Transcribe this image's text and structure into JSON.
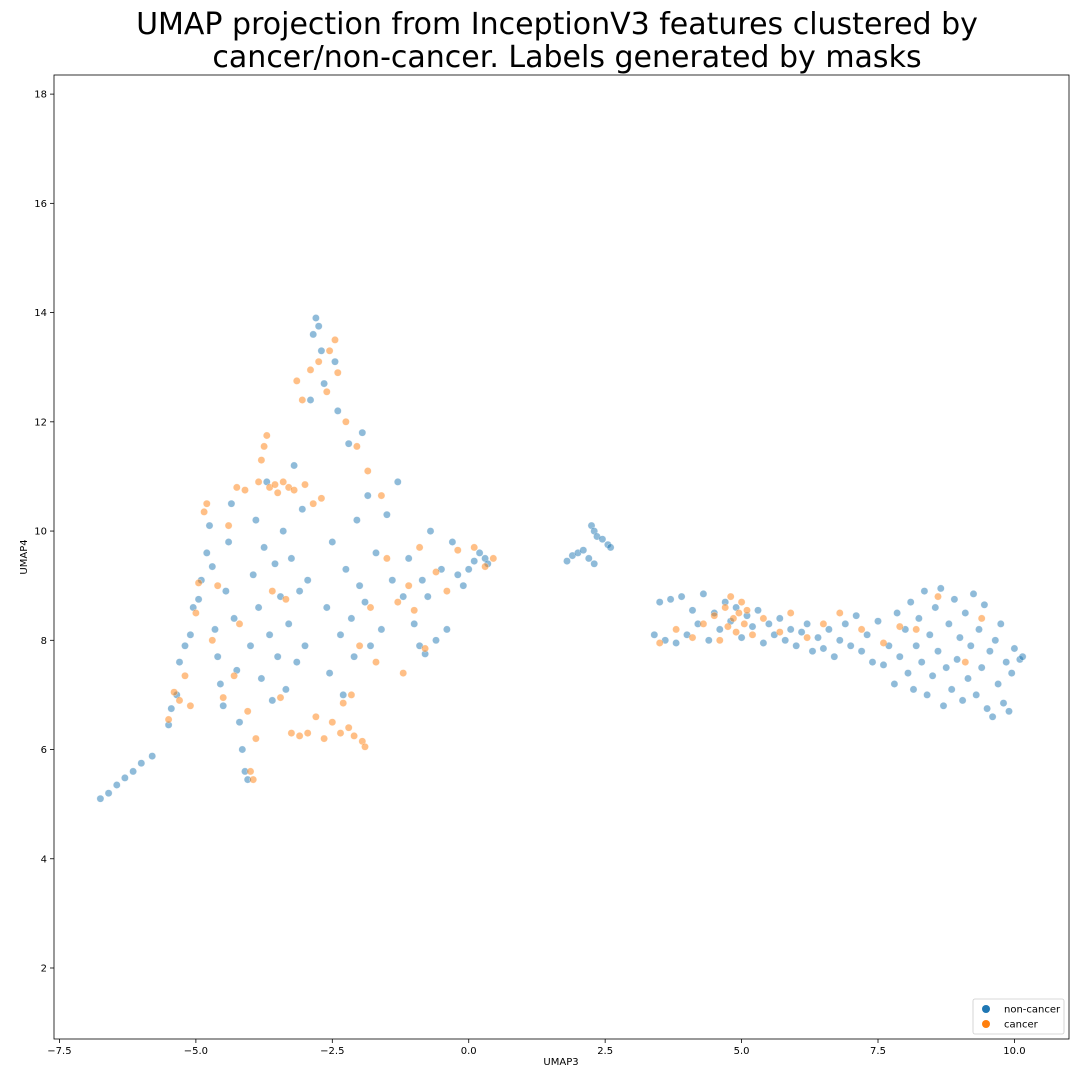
{
  "chart_data": {
    "type": "scatter",
    "title_lines": [
      "UMAP projection from InceptionV3 features clustered by",
      "cancer/non-cancer. Labels generated by masks"
    ],
    "xlabel": "UMAP3",
    "ylabel": "UMAP4",
    "xlim": [
      -7.6,
      11.0
    ],
    "ylim": [
      0.7,
      18.35
    ],
    "xticks": [
      -7.5,
      -5.0,
      -2.5,
      0.0,
      2.5,
      5.0,
      7.5,
      10.0
    ],
    "xtick_labels": [
      "−7.5",
      "−5.0",
      "−2.5",
      "0.0",
      "2.5",
      "5.0",
      "7.5",
      "10.0"
    ],
    "yticks": [
      2,
      4,
      6,
      8,
      10,
      12,
      14,
      16,
      18
    ],
    "ytick_labels": [
      "2",
      "4",
      "6",
      "8",
      "10",
      "12",
      "14",
      "16",
      "18"
    ],
    "grid": false,
    "legend": {
      "placement": "lower-right",
      "entries": [
        {
          "label": "non-cancer",
          "color": "#1f77b4"
        },
        {
          "label": "cancer",
          "color": "#ff7f0e"
        }
      ]
    },
    "point_alpha": 0.5,
    "series": [
      {
        "name": "non-cancer",
        "color": "#1f77b4",
        "points": [
          [
            -6.75,
            5.1
          ],
          [
            -6.6,
            5.2
          ],
          [
            -6.45,
            5.35
          ],
          [
            -6.3,
            5.48
          ],
          [
            -6.15,
            5.6
          ],
          [
            -6.0,
            5.75
          ],
          [
            -5.8,
            5.88
          ],
          [
            -5.5,
            6.45
          ],
          [
            -5.45,
            6.75
          ],
          [
            -5.35,
            7.0
          ],
          [
            -5.3,
            7.6
          ],
          [
            -5.2,
            7.9
          ],
          [
            -5.1,
            8.1
          ],
          [
            -5.05,
            8.6
          ],
          [
            -4.95,
            8.75
          ],
          [
            -4.9,
            9.1
          ],
          [
            -4.8,
            9.6
          ],
          [
            -4.75,
            10.1
          ],
          [
            -4.7,
            9.35
          ],
          [
            -4.65,
            8.2
          ],
          [
            -4.6,
            7.7
          ],
          [
            -4.55,
            7.2
          ],
          [
            -4.5,
            6.8
          ],
          [
            -4.45,
            8.9
          ],
          [
            -4.4,
            9.8
          ],
          [
            -4.35,
            10.5
          ],
          [
            -4.3,
            8.4
          ],
          [
            -4.25,
            7.45
          ],
          [
            -4.2,
            6.5
          ],
          [
            -4.15,
            6.0
          ],
          [
            -4.1,
            5.6
          ],
          [
            -4.05,
            5.45
          ],
          [
            -4.0,
            7.9
          ],
          [
            -3.95,
            9.2
          ],
          [
            -3.9,
            10.2
          ],
          [
            -3.85,
            8.6
          ],
          [
            -3.8,
            7.3
          ],
          [
            -3.75,
            9.7
          ],
          [
            -3.7,
            10.9
          ],
          [
            -3.65,
            8.1
          ],
          [
            -3.6,
            6.9
          ],
          [
            -3.55,
            9.4
          ],
          [
            -3.5,
            7.7
          ],
          [
            -3.45,
            8.8
          ],
          [
            -3.4,
            10.0
          ],
          [
            -3.35,
            7.1
          ],
          [
            -3.3,
            8.3
          ],
          [
            -3.25,
            9.5
          ],
          [
            -3.2,
            11.2
          ],
          [
            -3.15,
            7.6
          ],
          [
            -3.1,
            8.9
          ],
          [
            -3.05,
            10.4
          ],
          [
            -3.0,
            7.9
          ],
          [
            -2.95,
            9.1
          ],
          [
            -2.9,
            12.4
          ],
          [
            -2.85,
            13.6
          ],
          [
            -2.8,
            13.9
          ],
          [
            -2.75,
            13.75
          ],
          [
            -2.7,
            13.3
          ],
          [
            -2.65,
            12.7
          ],
          [
            -2.6,
            8.6
          ],
          [
            -2.55,
            7.4
          ],
          [
            -2.5,
            9.8
          ],
          [
            -2.45,
            13.1
          ],
          [
            -2.4,
            12.2
          ],
          [
            -2.35,
            8.1
          ],
          [
            -2.3,
            7.0
          ],
          [
            -2.25,
            9.3
          ],
          [
            -2.2,
            11.6
          ],
          [
            -2.15,
            8.4
          ],
          [
            -2.1,
            7.7
          ],
          [
            -2.05,
            10.2
          ],
          [
            -2.0,
            9.0
          ],
          [
            -1.95,
            11.8
          ],
          [
            -1.9,
            8.7
          ],
          [
            -1.85,
            10.65
          ],
          [
            -1.8,
            7.9
          ],
          [
            -1.7,
            9.6
          ],
          [
            -1.6,
            8.2
          ],
          [
            -1.5,
            10.3
          ],
          [
            -1.4,
            9.1
          ],
          [
            -1.3,
            10.9
          ],
          [
            -1.2,
            8.8
          ],
          [
            -1.1,
            9.5
          ],
          [
            -1.0,
            8.3
          ],
          [
            -0.9,
            7.9
          ],
          [
            -0.85,
            9.1
          ],
          [
            -0.8,
            7.75
          ],
          [
            -0.75,
            8.8
          ],
          [
            -0.7,
            10.0
          ],
          [
            -0.6,
            8.0
          ],
          [
            -0.5,
            9.3
          ],
          [
            -0.4,
            8.2
          ],
          [
            -0.3,
            9.8
          ],
          [
            -0.2,
            9.2
          ],
          [
            -0.1,
            9.0
          ],
          [
            0.0,
            9.3
          ],
          [
            0.1,
            9.45
          ],
          [
            0.2,
            9.6
          ],
          [
            0.3,
            9.5
          ],
          [
            0.35,
            9.4
          ],
          [
            1.8,
            9.45
          ],
          [
            1.9,
            9.55
          ],
          [
            2.0,
            9.6
          ],
          [
            2.1,
            9.65
          ],
          [
            2.2,
            9.5
          ],
          [
            2.25,
            10.1
          ],
          [
            2.3,
            10.0
          ],
          [
            2.35,
            9.9
          ],
          [
            2.45,
            9.85
          ],
          [
            2.55,
            9.75
          ],
          [
            2.6,
            9.7
          ],
          [
            2.3,
            9.4
          ],
          [
            3.4,
            8.1
          ],
          [
            3.5,
            8.7
          ],
          [
            3.6,
            8.0
          ],
          [
            3.7,
            8.75
          ],
          [
            3.8,
            7.95
          ],
          [
            3.9,
            8.8
          ],
          [
            4.0,
            8.1
          ],
          [
            4.1,
            8.55
          ],
          [
            4.2,
            8.3
          ],
          [
            4.3,
            8.85
          ],
          [
            4.4,
            8.0
          ],
          [
            4.5,
            8.5
          ],
          [
            4.6,
            8.2
          ],
          [
            4.7,
            8.7
          ],
          [
            4.8,
            8.35
          ],
          [
            4.9,
            8.6
          ],
          [
            5.0,
            8.05
          ],
          [
            5.1,
            8.45
          ],
          [
            5.2,
            8.25
          ],
          [
            5.3,
            8.55
          ],
          [
            5.4,
            7.95
          ],
          [
            5.5,
            8.3
          ],
          [
            5.6,
            8.1
          ],
          [
            5.7,
            8.4
          ],
          [
            5.8,
            8.0
          ],
          [
            5.9,
            8.2
          ],
          [
            6.0,
            7.9
          ],
          [
            6.1,
            8.15
          ],
          [
            6.2,
            8.3
          ],
          [
            6.3,
            7.8
          ],
          [
            6.4,
            8.05
          ],
          [
            6.5,
            7.85
          ],
          [
            6.6,
            8.2
          ],
          [
            6.7,
            7.7
          ],
          [
            6.8,
            8.0
          ],
          [
            6.9,
            8.3
          ],
          [
            7.0,
            7.9
          ],
          [
            7.1,
            8.45
          ],
          [
            7.2,
            7.8
          ],
          [
            7.3,
            8.1
          ],
          [
            7.4,
            7.6
          ],
          [
            7.5,
            8.35
          ],
          [
            7.6,
            7.55
          ],
          [
            7.7,
            7.9
          ],
          [
            7.8,
            7.2
          ],
          [
            7.85,
            8.5
          ],
          [
            7.9,
            7.7
          ],
          [
            8.0,
            8.2
          ],
          [
            8.05,
            7.4
          ],
          [
            8.1,
            8.7
          ],
          [
            8.15,
            7.1
          ],
          [
            8.2,
            7.9
          ],
          [
            8.25,
            8.4
          ],
          [
            8.3,
            7.6
          ],
          [
            8.35,
            8.9
          ],
          [
            8.4,
            7.0
          ],
          [
            8.45,
            8.1
          ],
          [
            8.5,
            7.35
          ],
          [
            8.55,
            8.6
          ],
          [
            8.6,
            7.8
          ],
          [
            8.65,
            8.95
          ],
          [
            8.7,
            6.8
          ],
          [
            8.75,
            7.5
          ],
          [
            8.8,
            8.3
          ],
          [
            8.85,
            7.1
          ],
          [
            8.9,
            8.75
          ],
          [
            8.95,
            7.65
          ],
          [
            9.0,
            8.05
          ],
          [
            9.05,
            6.9
          ],
          [
            9.1,
            8.5
          ],
          [
            9.15,
            7.3
          ],
          [
            9.2,
            7.9
          ],
          [
            9.25,
            8.85
          ],
          [
            9.3,
            7.0
          ],
          [
            9.35,
            8.2
          ],
          [
            9.4,
            7.5
          ],
          [
            9.45,
            8.65
          ],
          [
            9.5,
            6.75
          ],
          [
            9.55,
            7.8
          ],
          [
            9.6,
            6.6
          ],
          [
            9.65,
            8.0
          ],
          [
            9.7,
            7.2
          ],
          [
            9.75,
            8.3
          ],
          [
            9.8,
            6.85
          ],
          [
            9.85,
            7.6
          ],
          [
            9.9,
            6.7
          ],
          [
            9.95,
            7.4
          ],
          [
            10.0,
            7.85
          ],
          [
            10.1,
            7.65
          ],
          [
            10.15,
            7.7
          ]
        ]
      },
      {
        "name": "cancer",
        "color": "#ff7f0e",
        "points": [
          [
            -5.5,
            6.55
          ],
          [
            -5.4,
            7.05
          ],
          [
            -5.3,
            6.9
          ],
          [
            -5.2,
            7.35
          ],
          [
            -5.1,
            6.8
          ],
          [
            -5.0,
            8.5
          ],
          [
            -4.95,
            9.05
          ],
          [
            -4.85,
            10.35
          ],
          [
            -4.8,
            10.5
          ],
          [
            -4.7,
            8.0
          ],
          [
            -4.6,
            9.0
          ],
          [
            -4.5,
            6.95
          ],
          [
            -4.4,
            10.1
          ],
          [
            -4.3,
            7.35
          ],
          [
            -4.25,
            10.8
          ],
          [
            -4.2,
            8.3
          ],
          [
            -4.1,
            10.75
          ],
          [
            -4.05,
            6.7
          ],
          [
            -4.0,
            5.6
          ],
          [
            -3.95,
            5.45
          ],
          [
            -3.9,
            6.2
          ],
          [
            -3.85,
            10.9
          ],
          [
            -3.8,
            11.3
          ],
          [
            -3.75,
            11.55
          ],
          [
            -3.7,
            11.75
          ],
          [
            -3.65,
            10.8
          ],
          [
            -3.6,
            8.9
          ],
          [
            -3.55,
            10.85
          ],
          [
            -3.5,
            10.7
          ],
          [
            -3.45,
            6.95
          ],
          [
            -3.4,
            10.9
          ],
          [
            -3.35,
            8.75
          ],
          [
            -3.3,
            10.8
          ],
          [
            -3.25,
            6.3
          ],
          [
            -3.2,
            10.75
          ],
          [
            -3.15,
            12.75
          ],
          [
            -3.1,
            6.25
          ],
          [
            -3.05,
            12.4
          ],
          [
            -3.0,
            10.85
          ],
          [
            -2.95,
            6.3
          ],
          [
            -2.9,
            12.95
          ],
          [
            -2.85,
            10.5
          ],
          [
            -2.8,
            6.6
          ],
          [
            -2.75,
            13.1
          ],
          [
            -2.7,
            10.6
          ],
          [
            -2.65,
            6.2
          ],
          [
            -2.6,
            12.55
          ],
          [
            -2.55,
            13.3
          ],
          [
            -2.5,
            6.5
          ],
          [
            -2.45,
            13.5
          ],
          [
            -2.4,
            12.9
          ],
          [
            -2.35,
            6.3
          ],
          [
            -2.3,
            6.85
          ],
          [
            -2.25,
            12.0
          ],
          [
            -2.2,
            6.4
          ],
          [
            -2.15,
            7.0
          ],
          [
            -2.1,
            6.25
          ],
          [
            -2.05,
            11.55
          ],
          [
            -2.0,
            7.9
          ],
          [
            -1.95,
            6.15
          ],
          [
            -1.9,
            6.05
          ],
          [
            -1.85,
            11.1
          ],
          [
            -1.8,
            8.6
          ],
          [
            -1.7,
            7.6
          ],
          [
            -1.6,
            10.65
          ],
          [
            -1.5,
            9.5
          ],
          [
            -1.3,
            8.7
          ],
          [
            -1.2,
            7.4
          ],
          [
            -1.1,
            9.0
          ],
          [
            -1.0,
            8.55
          ],
          [
            -0.9,
            9.7
          ],
          [
            -0.8,
            7.85
          ],
          [
            -0.6,
            9.25
          ],
          [
            -0.4,
            8.9
          ],
          [
            -0.2,
            9.65
          ],
          [
            0.1,
            9.7
          ],
          [
            0.3,
            9.35
          ],
          [
            0.45,
            9.5
          ],
          [
            3.5,
            7.95
          ],
          [
            3.8,
            8.2
          ],
          [
            4.1,
            8.05
          ],
          [
            4.3,
            8.3
          ],
          [
            4.5,
            8.45
          ],
          [
            4.6,
            8.0
          ],
          [
            4.7,
            8.6
          ],
          [
            4.75,
            8.25
          ],
          [
            4.8,
            8.8
          ],
          [
            4.85,
            8.4
          ],
          [
            4.9,
            8.15
          ],
          [
            4.95,
            8.5
          ],
          [
            5.0,
            8.7
          ],
          [
            5.05,
            8.3
          ],
          [
            5.1,
            8.55
          ],
          [
            5.2,
            8.1
          ],
          [
            5.4,
            8.4
          ],
          [
            5.7,
            8.15
          ],
          [
            5.9,
            8.5
          ],
          [
            6.2,
            8.05
          ],
          [
            6.5,
            8.3
          ],
          [
            6.8,
            8.5
          ],
          [
            7.2,
            8.2
          ],
          [
            7.6,
            7.95
          ],
          [
            7.9,
            8.25
          ],
          [
            8.2,
            8.2
          ],
          [
            8.6,
            8.8
          ],
          [
            9.1,
            7.6
          ],
          [
            9.4,
            8.4
          ]
        ]
      }
    ]
  }
}
